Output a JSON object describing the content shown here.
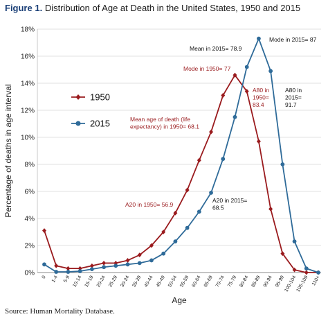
{
  "figure": {
    "prefix": "Figure 1.",
    "title": "Distribution of Age at Death in the United States, 1950 and 2015",
    "source": "Source: Human Mortality Database."
  },
  "chart_data": {
    "type": "line",
    "title": "Distribution of Age at Death in the United States, 1950 and 2015",
    "xlabel": "Age",
    "ylabel": "Percentage of deaths in age interval",
    "categories": [
      "0",
      "1-4",
      "5-9",
      "10-14",
      "15-19",
      "20-24",
      "25-29",
      "30-34",
      "35-39",
      "40-44",
      "45-49",
      "50-54",
      "55-59",
      "60-64",
      "65-69",
      "70-74",
      "75-79",
      "80-84",
      "85-89",
      "90-94",
      "95-99",
      "100-104",
      "105-109",
      "110+"
    ],
    "ylim": [
      0,
      18
    ],
    "yticks": [
      0,
      2,
      4,
      6,
      8,
      10,
      12,
      14,
      16,
      18
    ],
    "ytick_labels": [
      "0%",
      "2%",
      "4%",
      "6%",
      "8%",
      "10%",
      "12%",
      "14%",
      "16%",
      "18%"
    ],
    "grid": true,
    "legend_position": "left",
    "series": [
      {
        "name": "1950",
        "color": "#9a1b1e",
        "marker": "diamond",
        "values": [
          3.1,
          0.5,
          0.3,
          0.3,
          0.5,
          0.7,
          0.7,
          0.9,
          1.3,
          2.0,
          3.0,
          4.4,
          6.1,
          8.3,
          10.4,
          13.1,
          14.6,
          13.4,
          9.7,
          4.7,
          1.4,
          0.2,
          0.0,
          0.0
        ]
      },
      {
        "name": "2015",
        "color": "#2f6b99",
        "marker": "circle",
        "values": [
          0.6,
          0.05,
          0.05,
          0.1,
          0.25,
          0.4,
          0.5,
          0.6,
          0.7,
          0.9,
          1.4,
          2.3,
          3.3,
          4.5,
          5.9,
          8.4,
          11.5,
          15.2,
          17.3,
          14.9,
          8.0,
          2.3,
          0.3,
          0.0
        ]
      }
    ],
    "annotations": [
      {
        "id": "mean2015",
        "lines": [
          "Mean in 2015= 78.9"
        ],
        "series": "2015"
      },
      {
        "id": "mode2015",
        "lines": [
          "Mode in 2015= 87"
        ],
        "series": "2015"
      },
      {
        "id": "mode1950",
        "lines": [
          "Mode in 1950= 77"
        ],
        "series": "1950"
      },
      {
        "id": "a80_1950",
        "lines": [
          "A80 in",
          "1950=",
          "83.4"
        ],
        "series": "1950"
      },
      {
        "id": "a80_2015",
        "lines": [
          "A80 in",
          "2015=",
          "91.7"
        ],
        "series": "2015"
      },
      {
        "id": "mean1950",
        "lines": [
          "Mean age of death (life",
          "expectancy) in 1950= 68.1"
        ],
        "series": "1950"
      },
      {
        "id": "a20_2015",
        "lines": [
          "A20 in 2015=",
          "68.5"
        ],
        "series": "2015"
      },
      {
        "id": "a20_1950",
        "lines": [
          "A20 in 1950= 56.9"
        ],
        "series": "1950"
      }
    ]
  }
}
